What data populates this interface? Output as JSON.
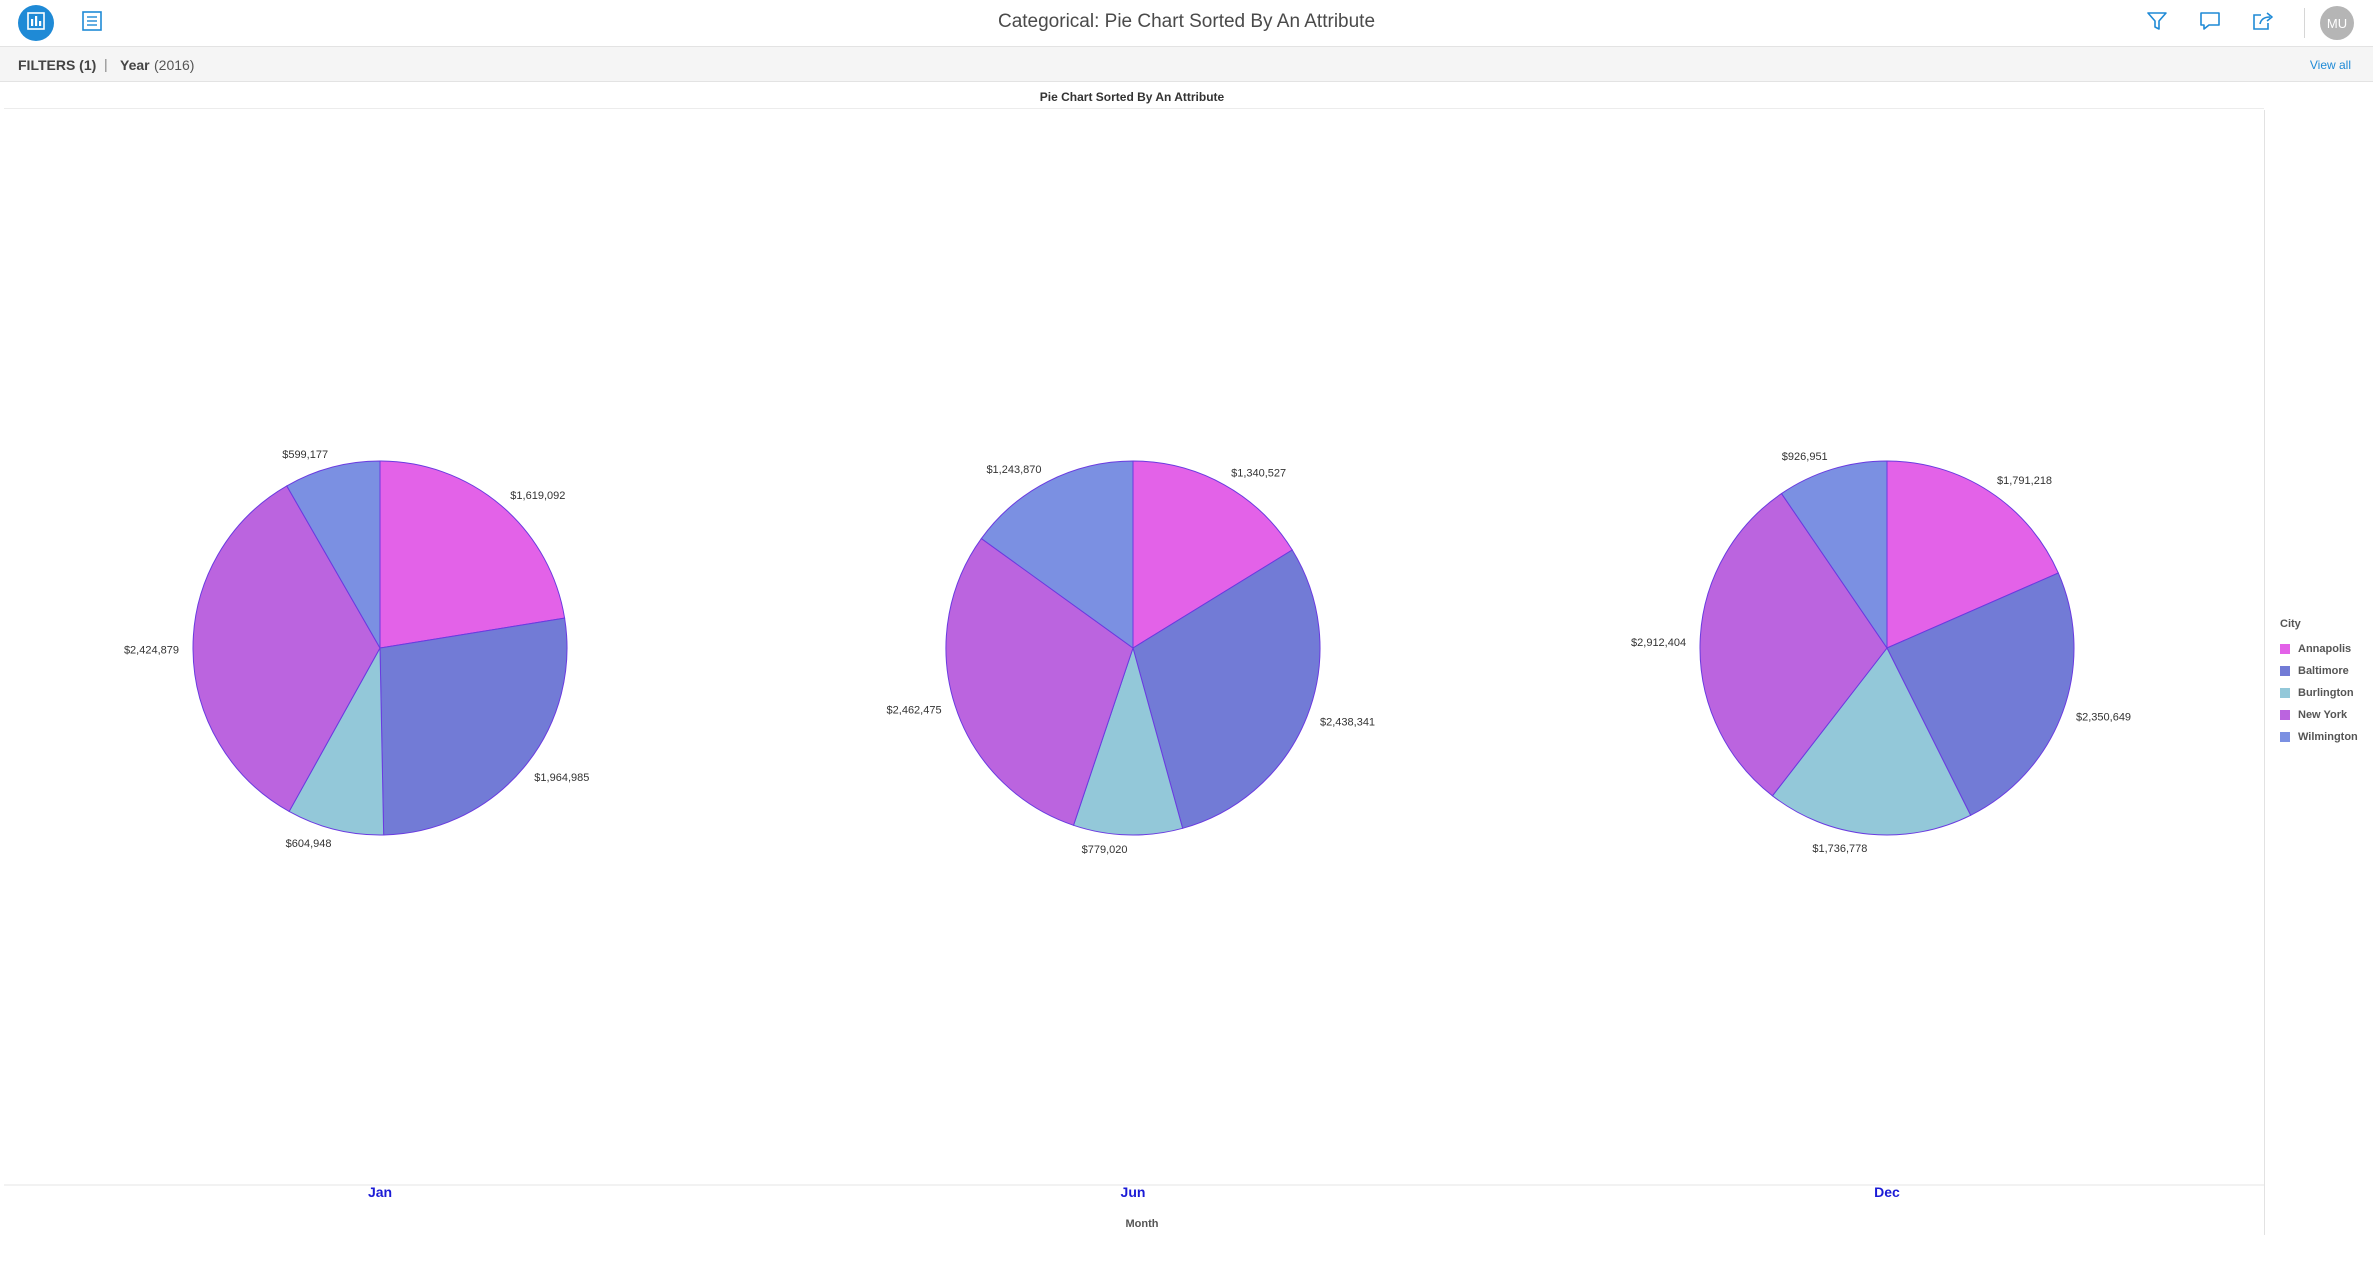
{
  "header": {
    "title": "Categorical: Pie Chart Sorted By An Attribute",
    "avatar_initials": "MU",
    "icons": [
      "chart-view-icon",
      "list-view-icon",
      "filter-icon",
      "comment-icon",
      "share-icon"
    ]
  },
  "filters": {
    "label": "FILTERS (1)",
    "separator": "|",
    "items": [
      {
        "name": "Year",
        "value": "(2016)"
      }
    ],
    "view_all": "View all"
  },
  "legend": {
    "title": "City",
    "items": [
      {
        "label": "Annapolis",
        "color": "#e362e8"
      },
      {
        "label": "Baltimore",
        "color": "#727bd6"
      },
      {
        "label": "Burlington",
        "color": "#93c8d9"
      },
      {
        "label": "New York",
        "color": "#bb64df"
      },
      {
        "label": "Wilmington",
        "color": "#7b90e2"
      }
    ]
  },
  "chart_data": {
    "type": "pie",
    "title": "Pie Chart Sorted By An Attribute",
    "xlabel": "Month",
    "facet_color": "#1b1bd6",
    "categories": [
      "Annapolis",
      "Baltimore",
      "Burlington",
      "New York",
      "Wilmington"
    ],
    "pies": [
      {
        "label": "Jan",
        "values": [
          1619092,
          1964985,
          604948,
          2424879,
          599177
        ],
        "labels": [
          "$1,619,092",
          "$1,964,985",
          "$604,948",
          "$2,424,879",
          "$599,177"
        ]
      },
      {
        "label": "Jun",
        "values": [
          1340527,
          2438341,
          779020,
          2462475,
          1243870
        ],
        "labels": [
          "$1,340,527",
          "$2,438,341",
          "$779,020",
          "$2,462,475",
          "$1,243,870"
        ]
      },
      {
        "label": "Dec",
        "values": [
          1791218,
          2350649,
          1736778,
          2912404,
          926951
        ],
        "labels": [
          "$1,791,218",
          "$2,350,649",
          "$1,736,778",
          "$2,912,404",
          "$926,951"
        ]
      }
    ]
  }
}
